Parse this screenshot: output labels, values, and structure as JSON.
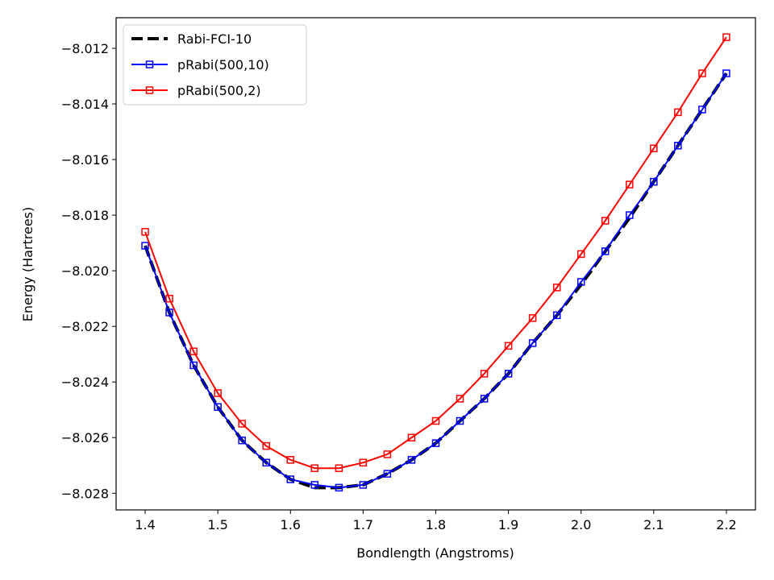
{
  "chart_data": {
    "type": "line",
    "title": "",
    "xlabel": "Bondlength (Angstroms)",
    "ylabel": "Energy (Hartrees)",
    "xlim": [
      1.36,
      2.24
    ],
    "ylim": [
      -8.0286,
      -8.0109
    ],
    "xticks": [
      1.4,
      1.5,
      1.6,
      1.7,
      1.8,
      1.9,
      2.0,
      2.1,
      2.2
    ],
    "xtick_labels": [
      "1.4",
      "1.5",
      "1.6",
      "1.7",
      "1.8",
      "1.9",
      "2.0",
      "2.1",
      "2.2"
    ],
    "yticks": [
      -8.028,
      -8.026,
      -8.024,
      -8.022,
      -8.02,
      -8.018,
      -8.016,
      -8.014,
      -8.012
    ],
    "ytick_labels": [
      "−8.028",
      "−8.026",
      "−8.024",
      "−8.022",
      "−8.020",
      "−8.018",
      "−8.016",
      "−8.014",
      "−8.012"
    ],
    "grid": false,
    "legend_position": "top-left",
    "x": [
      1.4,
      1.4333,
      1.4667,
      1.5,
      1.5333,
      1.5667,
      1.6,
      1.6333,
      1.6667,
      1.7,
      1.7333,
      1.7667,
      1.8,
      1.8333,
      1.8667,
      1.9,
      1.9333,
      1.9667,
      2.0,
      2.0333,
      2.0667,
      2.1,
      2.1333,
      2.1667,
      2.2
    ],
    "series": [
      {
        "name": "Rabi-FCI-10",
        "color": "#000000",
        "style": "dashed",
        "marker": "none",
        "values": [
          -8.0191,
          -8.0215,
          -8.0234,
          -8.0249,
          -8.0261,
          -8.0269,
          -8.0275,
          -8.0278,
          -8.0278,
          -8.0277,
          -8.0273,
          -8.0268,
          -8.0262,
          -8.0254,
          -8.0246,
          -8.0237,
          -8.0226,
          -8.0216,
          -8.0205,
          -8.0193,
          -8.0181,
          -8.0168,
          -8.0155,
          -8.0142,
          -8.0129
        ]
      },
      {
        "name": "pRabi(500,10)",
        "color": "#0000ff",
        "style": "solid",
        "marker": "square",
        "values": [
          -8.0191,
          -8.0215,
          -8.0234,
          -8.0249,
          -8.0261,
          -8.0269,
          -8.0275,
          -8.0277,
          -8.0278,
          -8.0277,
          -8.0273,
          -8.0268,
          -8.0262,
          -8.0254,
          -8.0246,
          -8.0237,
          -8.0226,
          -8.0216,
          -8.0204,
          -8.0193,
          -8.018,
          -8.0168,
          -8.0155,
          -8.0142,
          -8.0129
        ]
      },
      {
        "name": "pRabi(500,2)",
        "color": "#ff0000",
        "style": "solid",
        "marker": "square",
        "values": [
          -8.0186,
          -8.021,
          -8.0229,
          -8.0244,
          -8.0255,
          -8.0263,
          -8.0268,
          -8.0271,
          -8.0271,
          -8.0269,
          -8.0266,
          -8.026,
          -8.0254,
          -8.0246,
          -8.0237,
          -8.0227,
          -8.0217,
          -8.0206,
          -8.0194,
          -8.0182,
          -8.0169,
          -8.0156,
          -8.0143,
          -8.0129,
          -8.0116
        ]
      }
    ]
  }
}
